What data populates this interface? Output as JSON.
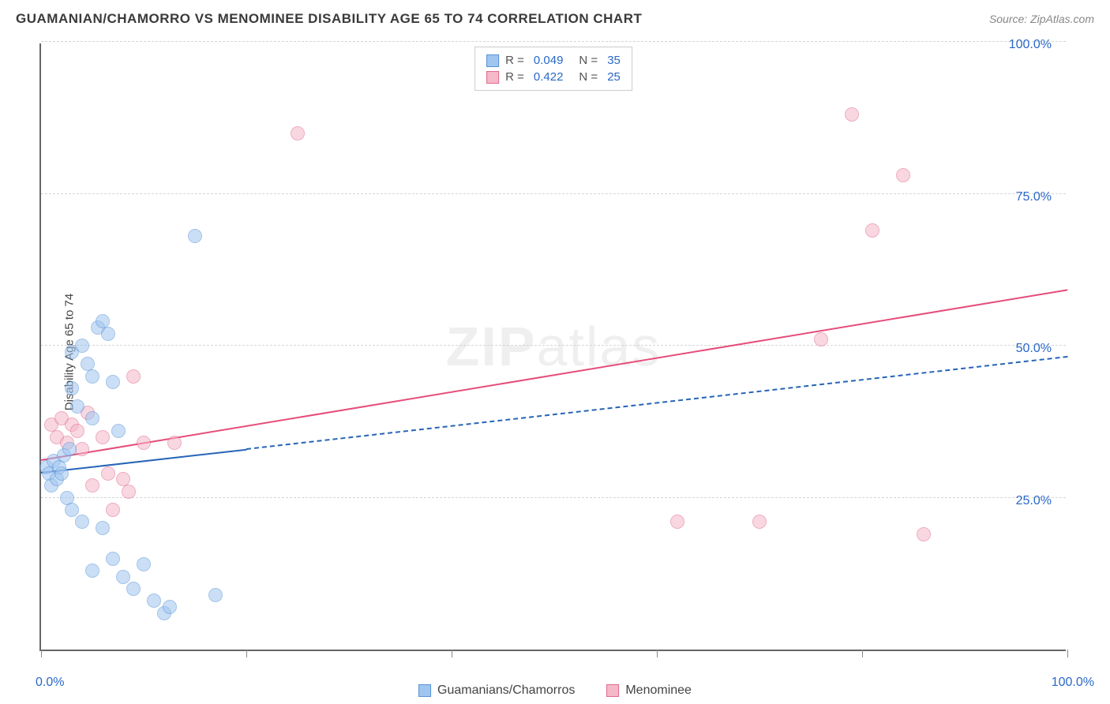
{
  "title": "GUAMANIAN/CHAMORRO VS MENOMINEE DISABILITY AGE 65 TO 74 CORRELATION CHART",
  "source": "Source: ZipAtlas.com",
  "watermark_zip": "ZIP",
  "watermark_atlas": "atlas",
  "y_axis_label": "Disability Age 65 to 74",
  "chart": {
    "type": "scatter",
    "xlim": [
      0,
      100
    ],
    "ylim": [
      0,
      100
    ],
    "background_color": "#ffffff",
    "grid_color": "#d5d5d5",
    "axis_color": "#666666",
    "y_ticks": [
      25,
      50,
      75,
      100
    ],
    "x_ticks": [
      0,
      20,
      40,
      60,
      80,
      100
    ],
    "x_tick_labels": {
      "0": "0.0%",
      "100": "100.0%"
    },
    "y_tick_labels": {
      "25": "25.0%",
      "50": "50.0%",
      "75": "75.0%",
      "100": "100.0%"
    },
    "label_color": "#2968c8",
    "label_fontsize": 16,
    "point_radius": 9,
    "point_opacity": 0.55,
    "point_border_opacity": 0.9
  },
  "series": {
    "guamanian": {
      "label": "Guamanians/Chamorros",
      "fill_color": "#9fc5f0",
      "border_color": "#5a93d6",
      "r_value": "0.049",
      "n_value": "35",
      "trend": {
        "x1": 0,
        "y1": 29,
        "x2": 100,
        "y2": 48,
        "solid_until_x": 20,
        "color": "#2764b8"
      },
      "points": [
        [
          0.5,
          30
        ],
        [
          0.8,
          29
        ],
        [
          1.0,
          27
        ],
        [
          1.2,
          31
        ],
        [
          1.5,
          28
        ],
        [
          1.8,
          30
        ],
        [
          2.0,
          29
        ],
        [
          2.2,
          32
        ],
        [
          2.5,
          25
        ],
        [
          2.8,
          33
        ],
        [
          3,
          43
        ],
        [
          3,
          49
        ],
        [
          3.5,
          40
        ],
        [
          4,
          50
        ],
        [
          4.5,
          47
        ],
        [
          5,
          38
        ],
        [
          5,
          45
        ],
        [
          5.5,
          53
        ],
        [
          6,
          54
        ],
        [
          6.5,
          52
        ],
        [
          7,
          44
        ],
        [
          7.5,
          36
        ],
        [
          3,
          23
        ],
        [
          4,
          21
        ],
        [
          5,
          13
        ],
        [
          6,
          20
        ],
        [
          7,
          15
        ],
        [
          8,
          12
        ],
        [
          9,
          10
        ],
        [
          10,
          14
        ],
        [
          11,
          8
        ],
        [
          12,
          6
        ],
        [
          12.5,
          7
        ],
        [
          15,
          68
        ],
        [
          17,
          9
        ]
      ]
    },
    "menominee": {
      "label": "Menominee",
      "fill_color": "#f5b8c9",
      "border_color": "#e06a8f",
      "r_value": "0.422",
      "n_value": "25",
      "trend": {
        "x1": 0,
        "y1": 31,
        "x2": 100,
        "y2": 59,
        "solid_until_x": 100,
        "color": "#e54d7a"
      },
      "points": [
        [
          1,
          37
        ],
        [
          1.5,
          35
        ],
        [
          2,
          38
        ],
        [
          2.5,
          34
        ],
        [
          3,
          37
        ],
        [
          3.5,
          36
        ],
        [
          4,
          33
        ],
        [
          4.5,
          39
        ],
        [
          5,
          27
        ],
        [
          6,
          35
        ],
        [
          6.5,
          29
        ],
        [
          7,
          23
        ],
        [
          8,
          28
        ],
        [
          8.5,
          26
        ],
        [
          9,
          45
        ],
        [
          10,
          34
        ],
        [
          13,
          34
        ],
        [
          25,
          85
        ],
        [
          62,
          21
        ],
        [
          70,
          21
        ],
        [
          76,
          51
        ],
        [
          79,
          88
        ],
        [
          81,
          69
        ],
        [
          84,
          78
        ],
        [
          86,
          19
        ]
      ]
    }
  },
  "legend_r_label": "R =",
  "legend_n_label": "N ="
}
